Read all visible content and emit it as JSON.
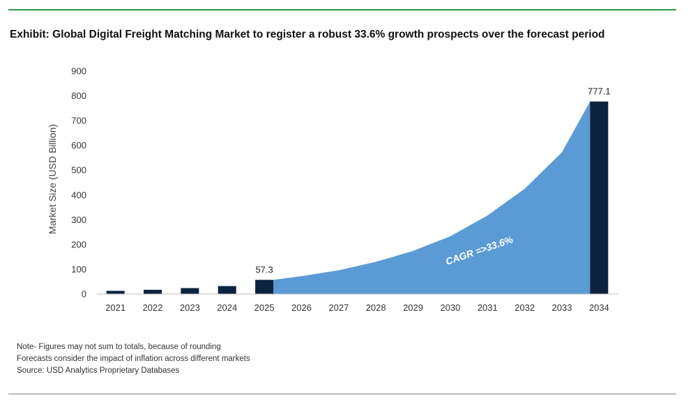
{
  "title": "Exhibit: Global Digital Freight Matching Market to register a robust 33.6% growth prospects over the forecast period",
  "notes": [
    "Note- Figures may not sum to totals, because of rounding",
    "Forecasts consider the impact of inflation across different markets",
    "Source: USD Analytics Proprietary Databases"
  ],
  "colors": {
    "bar": "#0c2340",
    "area": "#5b9bd5",
    "rule_top": "#2e9b47",
    "annotation_text": "#ffffff"
  },
  "chart_data": {
    "type": "bar",
    "categories": [
      "2021",
      "2022",
      "2023",
      "2024",
      "2025",
      "2026",
      "2027",
      "2028",
      "2029",
      "2030",
      "2031",
      "2032",
      "2033",
      "2034"
    ],
    "series": [
      {
        "type": "bar",
        "values": [
          12.9,
          17.2,
          24.0,
          32.1,
          57.3,
          null,
          null,
          null,
          null,
          null,
          null,
          null,
          null,
          777.1
        ],
        "data_labels": {
          "2025": "57.3",
          "2034": "777.1"
        }
      },
      {
        "type": "area",
        "values": [
          null,
          null,
          null,
          null,
          57.3,
          72.0,
          96.0,
          130.0,
          174.0,
          233.0,
          317.0,
          425.0,
          572.0,
          777.1
        ]
      }
    ],
    "ylabel": "Market Size (USD Billion)",
    "xlabel": "",
    "ylim": [
      0,
      900
    ],
    "yticks": [
      0,
      100,
      200,
      300,
      400,
      500,
      600,
      700,
      800,
      900
    ],
    "grid": false,
    "annotation": "CAGR =>33.6%"
  }
}
